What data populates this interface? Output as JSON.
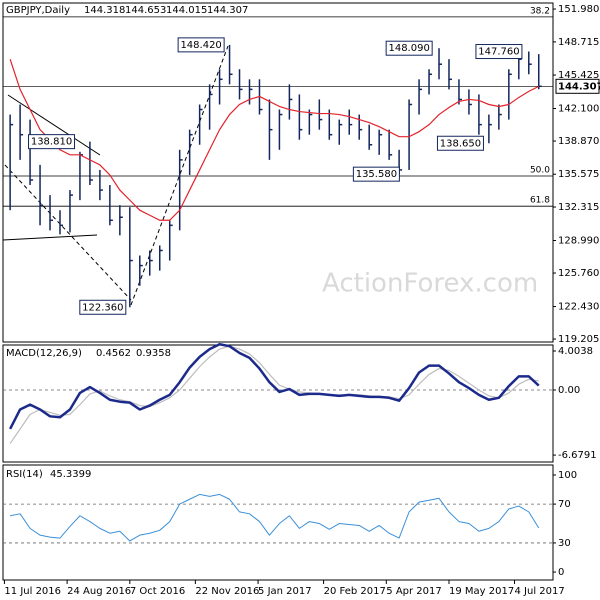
{
  "chart_data": [
    {
      "type": "ohlc",
      "title": "GBPJPY,Daily",
      "last_bar": [
        144.318,
        144.653,
        144.015,
        144.307
      ],
      "watermark": "ActionForex.com",
      "x": [
        "2016-07-15",
        "2016-07-22",
        "2016-07-29",
        "2016-08-05",
        "2016-08-12",
        "2016-08-19",
        "2016-08-26",
        "2016-09-02",
        "2016-09-09",
        "2016-09-16",
        "2016-09-23",
        "2016-09-30",
        "2016-10-07",
        "2016-10-14",
        "2016-10-21",
        "2016-10-28",
        "2016-11-04",
        "2016-11-11",
        "2016-11-18",
        "2016-11-25",
        "2016-12-02",
        "2016-12-09",
        "2016-12-16",
        "2016-12-23",
        "2016-12-30",
        "2017-01-06",
        "2017-01-13",
        "2017-01-20",
        "2017-01-27",
        "2017-02-03",
        "2017-02-10",
        "2017-02-17",
        "2017-02-24",
        "2017-03-03",
        "2017-03-10",
        "2017-03-17",
        "2017-03-24",
        "2017-03-31",
        "2017-04-07",
        "2017-04-14",
        "2017-04-21",
        "2017-04-28",
        "2017-05-05",
        "2017-05-12",
        "2017-05-19",
        "2017-05-26",
        "2017-06-02",
        "2017-06-09",
        "2017-06-16",
        "2017-06-23",
        "2017-06-30",
        "2017-07-07",
        "2017-07-14",
        "2017-07-21"
      ],
      "high": [
        141.5,
        142.5,
        141.0,
        136.5,
        133.5,
        132.0,
        134.0,
        137.8,
        138.81,
        136.0,
        134.5,
        132.5,
        132.3,
        127.5,
        128.0,
        128.5,
        131.0,
        138.0,
        140.0,
        142.5,
        144.5,
        146.0,
        148.42,
        146.0,
        145.0,
        145.0,
        143.0,
        142.0,
        144.5,
        143.5,
        142.0,
        143.0,
        142.0,
        141.0,
        142.0,
        141.5,
        140.5,
        140.0,
        140.0,
        138.0,
        143.0,
        145.0,
        146.0,
        148.09,
        147.0,
        145.0,
        144.0,
        143.5,
        141.5,
        142.5,
        146.0,
        147.5,
        147.76,
        147.5
      ],
      "low": [
        132.0,
        137.0,
        134.5,
        130.5,
        130.0,
        129.6,
        129.8,
        133.0,
        134.5,
        133.0,
        130.5,
        129.5,
        122.36,
        124.5,
        125.5,
        126.0,
        127.0,
        130.0,
        135.5,
        138.5,
        140.0,
        142.5,
        144.5,
        143.0,
        142.5,
        141.5,
        137.0,
        138.0,
        141.0,
        139.0,
        139.5,
        140.0,
        139.0,
        138.5,
        139.5,
        139.0,
        138.0,
        137.5,
        137.0,
        135.58,
        136.0,
        141.5,
        143.5,
        145.0,
        144.0,
        142.5,
        141.5,
        139.5,
        138.65,
        140.0,
        141.0,
        145.0,
        145.5,
        144.015
      ],
      "close": [
        140.5,
        139.5,
        135.0,
        132.5,
        131.0,
        130.5,
        133.5,
        137.5,
        135.0,
        134.0,
        131.0,
        131.3,
        127.0,
        126.5,
        127.0,
        128.0,
        130.5,
        137.0,
        139.5,
        142.0,
        143.5,
        145.0,
        145.5,
        144.0,
        144.0,
        142.0,
        140.0,
        141.5,
        143.0,
        140.0,
        141.5,
        141.0,
        139.5,
        140.5,
        140.5,
        140.0,
        138.5,
        139.5,
        137.5,
        136.0,
        142.5,
        144.0,
        145.5,
        146.5,
        145.0,
        143.0,
        142.5,
        140.5,
        140.5,
        141.5,
        145.5,
        147.0,
        146.5,
        144.307
      ],
      "ma": [
        147.0,
        144.0,
        142.0,
        140.0,
        139.0,
        138.0,
        137.5,
        137.5,
        137.0,
        136.5,
        135.5,
        134.0,
        133.0,
        132.0,
        131.5,
        131.0,
        131.0,
        132.0,
        134.0,
        136.0,
        138.0,
        140.0,
        141.5,
        142.5,
        143.0,
        143.3,
        142.8,
        142.3,
        142.0,
        141.8,
        141.7,
        141.6,
        141.6,
        141.5,
        141.3,
        141.0,
        140.7,
        140.3,
        139.8,
        139.3,
        139.3,
        139.8,
        140.5,
        141.5,
        142.2,
        142.8,
        143.0,
        142.9,
        142.5,
        142.3,
        142.5,
        143.2,
        143.8,
        144.3
      ],
      "bar_color": "#13265e",
      "ma_color": "#e3222b",
      "annotations": [
        {
          "x": "2016-12-15",
          "value": 148.42,
          "label": "148.420"
        },
        {
          "x": "2016-09-01",
          "value": 138.81,
          "label": "138.810"
        },
        {
          "x": "2016-10-07",
          "value": 122.36,
          "label": "122.360"
        },
        {
          "x": "2017-04-17",
          "value": 135.58,
          "label": "135.580"
        },
        {
          "x": "2017-05-10",
          "value": 148.09,
          "label": "148.090"
        },
        {
          "x": "2017-07-12",
          "value": 147.76,
          "label": "147.760"
        },
        {
          "x": "2017-06-15",
          "value": 138.65,
          "label": "138.650"
        }
      ],
      "levels": [
        {
          "value": 151.2,
          "label": "38.2"
        },
        {
          "value": 135.4,
          "label": "50.0"
        },
        {
          "value": 132.4,
          "label": "61.8"
        }
      ],
      "xlim": [
        "2016-07-10",
        "2017-07-31"
      ],
      "xticks": [
        {
          "value": "2016-07-11",
          "label": "11 Jul 2016"
        },
        {
          "value": "2016-08-24",
          "label": "24 Aug 2016"
        },
        {
          "value": "2016-10-07",
          "label": "7 Oct 2016"
        },
        {
          "value": "2016-11-22",
          "label": "22 Nov 2016"
        },
        {
          "value": "2017-01-05",
          "label": "5 Jan 2017"
        },
        {
          "value": "2017-02-20",
          "label": "20 Feb 2017"
        },
        {
          "value": "2017-04-05",
          "label": "5 Apr 2017"
        },
        {
          "value": "2017-05-19",
          "label": "19 May 2017"
        },
        {
          "value": "2017-07-04",
          "label": "4 Jul 2017"
        }
      ],
      "ylim": [
        118.91,
        152.58
      ],
      "yticks": [
        {
          "value": 151.98,
          "label": "151.980"
        },
        {
          "value": 148.715,
          "label": "148.715"
        },
        {
          "value": 145.425,
          "label": "145.425"
        },
        {
          "value": 142.1,
          "label": "142.100"
        },
        {
          "value": 138.87,
          "label": "138.870"
        },
        {
          "value": 135.575,
          "label": "135.575"
        },
        {
          "value": 132.315,
          "label": "132.315"
        },
        {
          "value": 128.99,
          "label": "128.990"
        },
        {
          "value": 125.76,
          "label": "125.760"
        },
        {
          "value": 122.43,
          "label": "122.430"
        },
        {
          "value": 119.205,
          "label": "119.205"
        }
      ]
    },
    {
      "type": "line",
      "title": "MACD(12,26,9)",
      "series": [
        {
          "color": "#1c2a8c",
          "width": 2.5,
          "values": [
            -4,
            -2,
            -1.5,
            -2,
            -2.7,
            -2.8,
            -2,
            -0.3,
            0.3,
            -0.3,
            -1,
            -1.2,
            -1.3,
            -2,
            -1.6,
            -1,
            -0.5,
            0.8,
            2.3,
            3.4,
            4.2,
            4.7,
            4.5,
            3.8,
            3.3,
            2.2,
            0.8,
            -0.2,
            0.1,
            -0.5,
            -0.4,
            -0.4,
            -0.5,
            -0.6,
            -0.5,
            -0.6,
            -0.7,
            -0.7,
            -0.8,
            -1.1,
            0.2,
            1.8,
            2.5,
            2.5,
            1.7,
            0.8,
            0.2,
            -0.5,
            -1,
            -0.8,
            0.4,
            1.4,
            1.4,
            0.4562
          ]
        },
        {
          "color": "#bdbdbd",
          "width": 1.2,
          "values": [
            -5.5,
            -4,
            -2.5,
            -2,
            -2.3,
            -2.6,
            -2.5,
            -1.5,
            -0.4,
            -0.1,
            -0.6,
            -1,
            -1.2,
            -1.6,
            -1.7,
            -1.3,
            -0.8,
            0,
            1.2,
            2.4,
            3.4,
            4.2,
            4.5,
            4.2,
            3.7,
            2.8,
            1.6,
            0.5,
            0.1,
            -0.2,
            -0.3,
            -0.4,
            -0.5,
            -0.5,
            -0.5,
            -0.5,
            -0.6,
            -0.7,
            -0.7,
            -0.9,
            -0.5,
            0.6,
            1.6,
            2.2,
            2.0,
            1.4,
            0.7,
            0,
            -0.6,
            -0.8,
            -0.3,
            0.6,
            1.1,
            0.9358
          ]
        }
      ],
      "ylim": [
        -7.39,
        4.62
      ],
      "yticks": [
        4.0038,
        {
          "value": 0,
          "label": "0.00"
        },
        -6.6791
      ],
      "dashed_levels": [
        0
      ]
    },
    {
      "type": "line",
      "title": "RSI(14)",
      "series": [
        {
          "color": "#3b8fd8",
          "width": 1,
          "values": [
            58,
            60,
            45,
            38,
            36,
            35,
            47,
            58,
            52,
            45,
            40,
            42,
            32,
            38,
            40,
            43,
            52,
            70,
            75,
            80,
            78,
            80,
            75,
            62,
            60,
            52,
            38,
            50,
            58,
            45,
            52,
            50,
            44,
            50,
            49,
            48,
            42,
            48,
            40,
            35,
            62,
            72,
            74,
            76,
            62,
            52,
            50,
            42,
            45,
            52,
            65,
            68,
            62,
            45.3399
          ]
        }
      ],
      "ylim": [
        -8.2,
        110.3
      ],
      "yticks": [
        100,
        70,
        30,
        0
      ],
      "dashed_levels": [
        70,
        30
      ]
    }
  ]
}
